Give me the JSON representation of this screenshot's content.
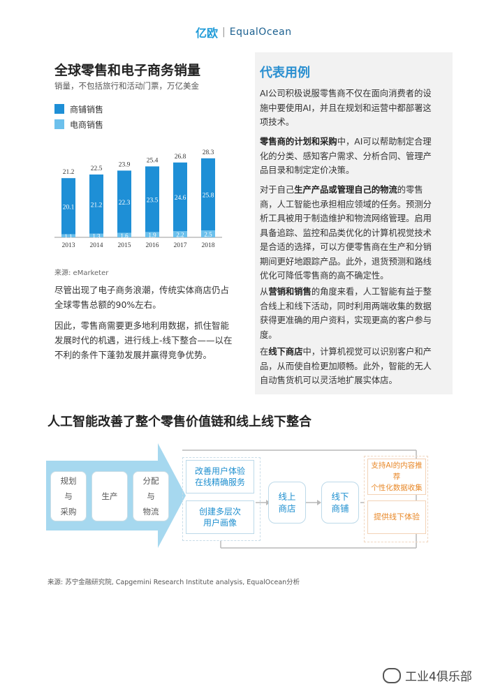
{
  "header": {
    "logo_yi": "亿欧",
    "logo_sep": "|",
    "logo_eo": "EqualOcean"
  },
  "chart": {
    "title": "全球零售和电子商务销量",
    "subtitle": "销量，不包括旅行和活动门票，万亿美金",
    "source": "来源: eMarketer"
  },
  "chart_data": {
    "type": "bar",
    "categories": [
      "2013",
      "2014",
      "2015",
      "2016",
      "2017",
      "2018"
    ],
    "series": [
      {
        "name": "商铺销售",
        "values": [
          20.1,
          21.2,
          22.3,
          23.5,
          24.6,
          25.8
        ],
        "color": "#1e8fd6"
      },
      {
        "name": "电商销售",
        "values": [
          1.1,
          1.3,
          1.6,
          1.9,
          2.2,
          2.5
        ],
        "color": "#6cc0ec"
      }
    ],
    "totals": [
      21.2,
      22.5,
      23.9,
      25.4,
      26.8,
      28.3
    ],
    "stacked": true,
    "legend_position": "top-left",
    "grid": false
  },
  "left_text": {
    "p1": "尽管出现了电子商务浪潮，传统实体商店仍占全球零售总额的90%左右。",
    "p2": "因此，零售商需要更多地利用数据，抓住智能发展时代的机遇，进行线上-线下整合——以在不利的条件下蓬勃发展并赢得竞争优势。"
  },
  "right": {
    "title": "代表用例",
    "p1": "AI公司积极说服零售商不仅在面向消费者的设施中要使用AI，并且在规划和运营中都部署这项技术。",
    "p2_bold": "零售商的计划和采购",
    "p2_rest": "中，AI可以帮助制定合理化的分类、感知客户需求、分析合同、管理产品目录和制定定价决策。",
    "p3_a": "对于自己",
    "p3_bold": "生产产品或管理自己的物流",
    "p3_rest": "的零售商，人工智能也承担相应领域的任务。预测分析工具被用于制造维护和物流网络管理。启用具备追踪、监控和品类优化的计算机视觉技术是合适的选择，可以方便零售商在生产和分销期间更好地跟踪产品。此外，退货预测和路线优化可降低零售商的高不确定性。",
    "p4_a": "从",
    "p4_bold": "营销和销售",
    "p4_rest": "的角度来看，人工智能有益于整合线上和线下活动，同时利用两端收集的数据获得更准确的用户资料，实现更高的客户参与度。",
    "p5_a": "在",
    "p5_bold": "线下商店",
    "p5_rest": "中，计算机视觉可以识别客户和产品，从而使自检更加顺畅。此外，智能的无人自动售货机可以灵活地扩展实体店。"
  },
  "section": {
    "title": "人工智能改善了整个零售价值链和线上线下整合"
  },
  "diagram": {
    "box1_l1": "规划",
    "box1_l2": "与",
    "box1_l3": "采购",
    "box2": "生产",
    "box3_l1": "分配",
    "box3_l2": "与",
    "box3_l3": "物流",
    "blue1_l1": "改善用户体验",
    "blue1_l2": "在线精确服务",
    "blue2_l1": "创建多层次",
    "blue2_l2": "用户画像",
    "online_l1": "线上",
    "online_l2": "商店",
    "offline_l1": "线下",
    "offline_l2": "商铺",
    "orange1_l1": "支持AI的内容推荐",
    "orange1_l2": "个性化数据收集",
    "orange2": "提供线下体验",
    "source": "来源: 苏宁金融研究院, Capgemini Research Institute analysis, EqualOcean分析"
  },
  "watermark": {
    "text": "工业4俱乐部"
  }
}
